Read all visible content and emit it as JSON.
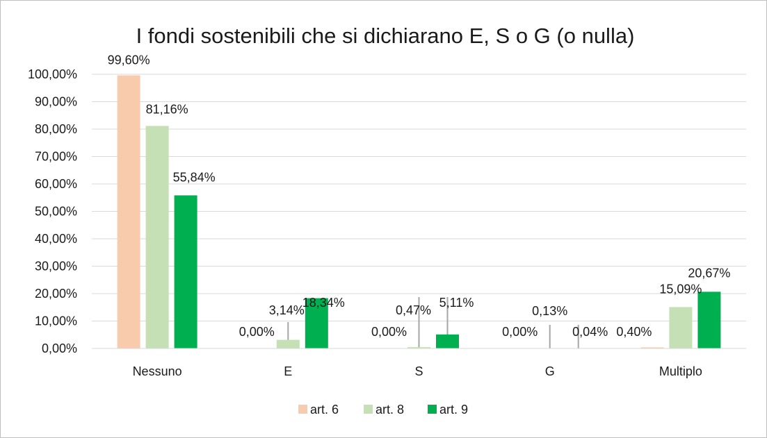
{
  "chart_data": {
    "type": "bar",
    "title": "I fondi sostenibili che si dichiarano E, S o G (o nulla)",
    "xlabel": "",
    "ylabel": "",
    "categories": [
      "Nessuno",
      "E",
      "S",
      "G",
      "Multiplo"
    ],
    "series": [
      {
        "name": "art. 6",
        "color": "#f8cbad",
        "values": [
          99.6,
          0.0,
          0.0,
          0.0,
          0.4
        ],
        "labels": [
          "99,60%",
          "0,00%",
          "0,00%",
          "0,00%",
          "0,40%"
        ]
      },
      {
        "name": "art. 8",
        "color": "#c5e0b4",
        "values": [
          81.16,
          3.14,
          0.47,
          0.13,
          15.09
        ],
        "labels": [
          "81,16%",
          "3,14%",
          "0,47%",
          "0,13%",
          "15,09%"
        ]
      },
      {
        "name": "art. 9",
        "color": "#00b050",
        "values": [
          55.84,
          18.34,
          5.11,
          0.04,
          20.67
        ],
        "labels": [
          "55,84%",
          "18,34%",
          "5,11%",
          "0,04%",
          "20,67%"
        ]
      }
    ],
    "ylim": [
      0,
      100
    ],
    "yticks": [
      0,
      10,
      20,
      30,
      40,
      50,
      60,
      70,
      80,
      90,
      100
    ],
    "ytick_labels": [
      "0,00%",
      "10,00%",
      "20,00%",
      "30,00%",
      "40,00%",
      "50,00%",
      "60,00%",
      "70,00%",
      "80,00%",
      "90,00%",
      "100,00%"
    ],
    "grid": true,
    "legend_position": "bottom",
    "gridline_color": "#d9d9d9",
    "leader_line_color": "#a6a6a6"
  }
}
